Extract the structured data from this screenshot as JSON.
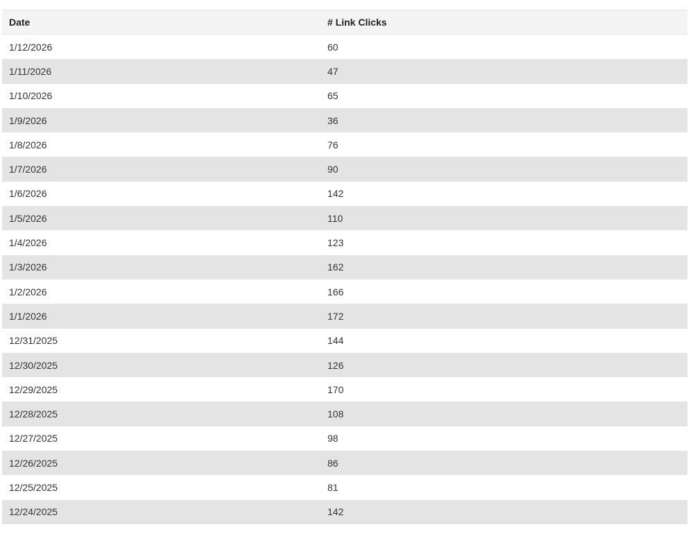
{
  "table": {
    "columns": [
      "Date",
      "# Link Clicks"
    ],
    "rows": [
      [
        "1/12/2026",
        "60"
      ],
      [
        "1/11/2026",
        "47"
      ],
      [
        "1/10/2026",
        "65"
      ],
      [
        "1/9/2026",
        "36"
      ],
      [
        "1/8/2026",
        "76"
      ],
      [
        "1/7/2026",
        "90"
      ],
      [
        "1/6/2026",
        "142"
      ],
      [
        "1/5/2026",
        "110"
      ],
      [
        "1/4/2026",
        "123"
      ],
      [
        "1/3/2026",
        "162"
      ],
      [
        "1/2/2026",
        "166"
      ],
      [
        "1/1/2026",
        "172"
      ],
      [
        "12/31/2025",
        "144"
      ],
      [
        "12/30/2025",
        "126"
      ],
      [
        "12/29/2025",
        "170"
      ],
      [
        "12/28/2025",
        "108"
      ],
      [
        "12/27/2025",
        "98"
      ],
      [
        "12/26/2025",
        "86"
      ],
      [
        "12/25/2025",
        "81"
      ],
      [
        "12/24/2025",
        "142"
      ]
    ]
  }
}
